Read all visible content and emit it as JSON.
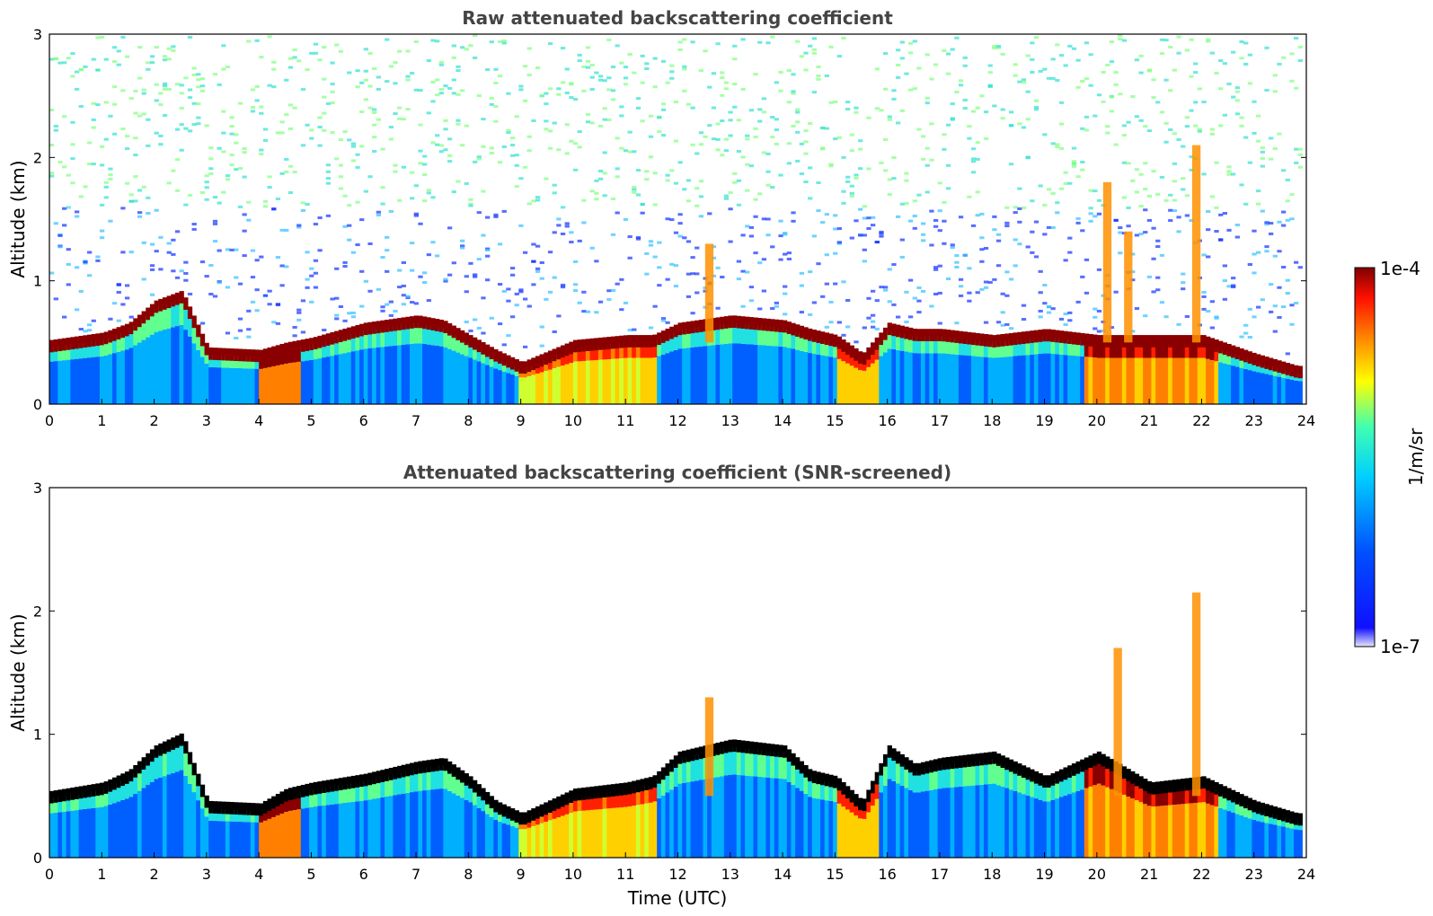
{
  "figure": {
    "colorbar": {
      "max_label": "1e-4",
      "min_label": "1e-7",
      "unit_label": "1/m/sr",
      "scale": "log",
      "min": 1e-07,
      "max": 0.0001
    }
  },
  "colors": {
    "colormap": [
      "#ffffff",
      "#0000ff",
      "#00c8ff",
      "#40ffb8",
      "#ffff00",
      "#ff7f00",
      "#ff0000",
      "#7f0000"
    ]
  },
  "chart_data": [
    {
      "type": "heatmap",
      "title": "Raw attenuated backscattering coefficient",
      "xlabel": "",
      "ylabel": "Altitude (km)",
      "xlim": [
        0,
        24
      ],
      "ylim": [
        0,
        3
      ],
      "xticks": [
        0,
        1,
        2,
        3,
        4,
        5,
        6,
        7,
        8,
        9,
        10,
        11,
        12,
        13,
        14,
        15,
        16,
        17,
        18,
        19,
        20,
        21,
        22,
        23,
        24
      ],
      "yticks": [
        0,
        1,
        2,
        3
      ],
      "grid": false,
      "layer_top_km": [
        [
          0,
          0.46
        ],
        [
          1,
          0.52
        ],
        [
          1.5,
          0.6
        ],
        [
          2,
          0.78
        ],
        [
          2.5,
          0.86
        ],
        [
          3,
          0.4
        ],
        [
          4,
          0.38
        ],
        [
          4.5,
          0.44
        ],
        [
          5,
          0.48
        ],
        [
          6,
          0.6
        ],
        [
          7,
          0.66
        ],
        [
          7.5,
          0.62
        ],
        [
          8,
          0.5
        ],
        [
          8.5,
          0.38
        ],
        [
          9,
          0.28
        ],
        [
          10,
          0.46
        ],
        [
          11,
          0.5
        ],
        [
          11.5,
          0.5
        ],
        [
          12,
          0.6
        ],
        [
          13,
          0.66
        ],
        [
          14,
          0.62
        ],
        [
          14.5,
          0.55
        ],
        [
          15,
          0.5
        ],
        [
          15.5,
          0.35
        ],
        [
          16,
          0.6
        ],
        [
          16.5,
          0.55
        ],
        [
          17,
          0.55
        ],
        [
          18,
          0.5
        ],
        [
          19,
          0.55
        ],
        [
          20,
          0.5
        ],
        [
          21,
          0.5
        ],
        [
          22,
          0.5
        ],
        [
          23,
          0.35
        ],
        [
          23.8,
          0.25
        ]
      ],
      "plumes": [
        {
          "t": 20.2,
          "top_km": 1.8
        },
        {
          "t": 20.6,
          "top_km": 1.4
        },
        {
          "t": 21.9,
          "top_km": 2.1
        },
        {
          "t": 12.6,
          "top_km": 1.3
        }
      ]
    },
    {
      "type": "heatmap",
      "title": "Attenuated backscattering coefficient (SNR-screened)",
      "xlabel": "Time (UTC)",
      "ylabel": "Altitude (km)",
      "xlim": [
        0,
        24
      ],
      "ylim": [
        0,
        3
      ],
      "xticks": [
        0,
        1,
        2,
        3,
        4,
        5,
        6,
        7,
        8,
        9,
        10,
        11,
        12,
        13,
        14,
        15,
        16,
        17,
        18,
        19,
        20,
        21,
        22,
        23,
        24
      ],
      "yticks": [
        0,
        1,
        2,
        3
      ],
      "grid": false,
      "layer_top_km": [
        [
          0,
          0.48
        ],
        [
          1,
          0.55
        ],
        [
          1.5,
          0.65
        ],
        [
          2,
          0.85
        ],
        [
          2.5,
          0.95
        ],
        [
          3,
          0.4
        ],
        [
          4,
          0.38
        ],
        [
          4.5,
          0.5
        ],
        [
          5,
          0.55
        ],
        [
          6,
          0.62
        ],
        [
          7,
          0.72
        ],
        [
          7.5,
          0.75
        ],
        [
          8,
          0.6
        ],
        [
          8.5,
          0.4
        ],
        [
          9,
          0.3
        ],
        [
          10,
          0.5
        ],
        [
          11,
          0.55
        ],
        [
          11.5,
          0.6
        ],
        [
          12,
          0.8
        ],
        [
          13,
          0.9
        ],
        [
          14,
          0.85
        ],
        [
          14.5,
          0.65
        ],
        [
          15,
          0.6
        ],
        [
          15.5,
          0.4
        ],
        [
          16,
          0.85
        ],
        [
          16.5,
          0.7
        ],
        [
          17,
          0.75
        ],
        [
          18,
          0.8
        ],
        [
          19,
          0.6
        ],
        [
          20,
          0.8
        ],
        [
          21,
          0.55
        ],
        [
          22,
          0.6
        ],
        [
          23,
          0.4
        ],
        [
          23.8,
          0.3
        ]
      ],
      "plumes": [
        {
          "t": 20.4,
          "top_km": 1.7
        },
        {
          "t": 21.9,
          "top_km": 2.15
        },
        {
          "t": 12.6,
          "top_km": 1.3
        }
      ]
    }
  ]
}
